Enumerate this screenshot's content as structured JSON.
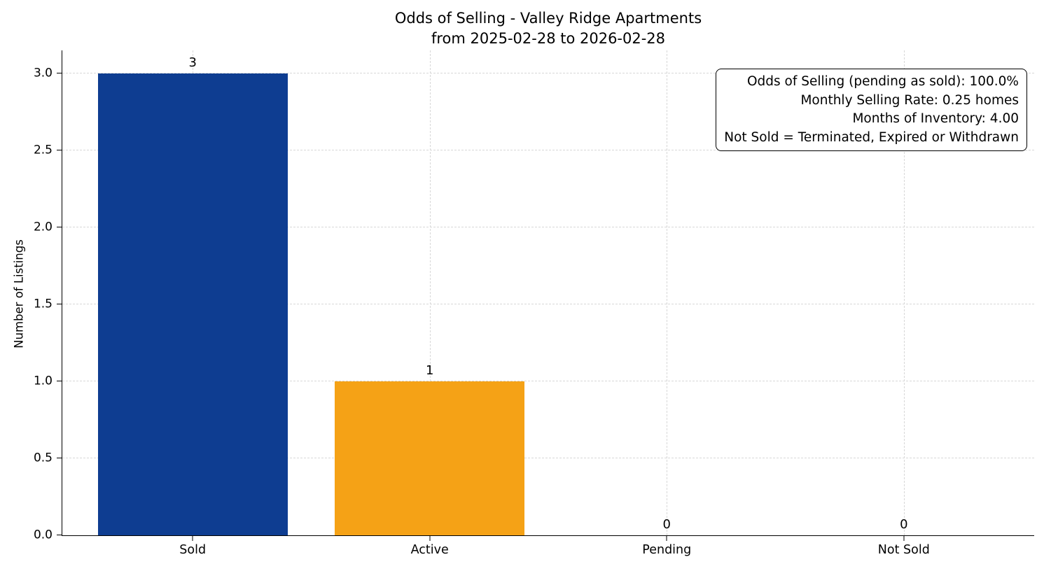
{
  "chart_data": {
    "type": "bar",
    "title": "Odds of Selling - Valley Ridge Apartments",
    "subtitle": "from 2025-02-28 to 2026-02-28",
    "categories": [
      "Sold",
      "Active",
      "Pending",
      "Not Sold"
    ],
    "values": [
      3,
      1,
      0,
      0
    ],
    "data_labels": [
      "3",
      "1",
      "0",
      "0"
    ],
    "bar_colors": [
      "#0e3d91",
      "#f5a216",
      "#9e9e9e",
      "#9e9e9e"
    ],
    "bar_width": 0.8,
    "xlabel": "",
    "ylabel": "Number of Listings",
    "ylim": [
      0,
      3.15
    ],
    "xlim": [
      -0.55,
      3.55
    ],
    "ytick_values": [
      0,
      0.5,
      1,
      1.5,
      2,
      2.5,
      3
    ],
    "ytick_labels": [
      "0.0",
      "0.5",
      "1.0",
      "1.5",
      "2.0",
      "2.5",
      "3.0"
    ],
    "grid": true,
    "grid_style": "dashed",
    "legend": "none",
    "annotation_lines": [
      "Odds of Selling (pending as sold): 100.0%",
      "Monthly Selling Rate: 0.25 homes",
      "Months of Inventory: 4.00",
      "Not Sold = Terminated, Expired or Withdrawn"
    ]
  }
}
